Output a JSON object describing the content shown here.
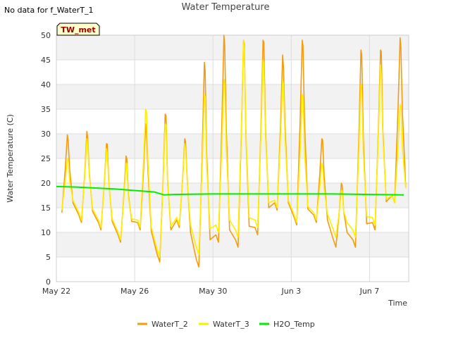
{
  "notice": "No data for f_WaterT_1",
  "chart_data": {
    "type": "line",
    "title": "Water Temperature",
    "xlabel": "Time",
    "ylabel": "Water Temperature (C)",
    "station_badge": "TW_met",
    "ylim": [
      0,
      50
    ],
    "yticks": [
      0,
      5,
      10,
      15,
      20,
      25,
      30,
      35,
      40,
      45,
      50
    ],
    "xlim": [
      "2023-05-22",
      "2023-06-09"
    ],
    "xticks": [
      {
        "date": "2023-05-22",
        "label": "May 22"
      },
      {
        "date": "2023-05-26",
        "label": "May 26"
      },
      {
        "date": "2023-05-30",
        "label": "May 30"
      },
      {
        "date": "2023-06-03",
        "label": "Jun 3"
      },
      {
        "date": "2023-06-07",
        "label": "Jun 7"
      }
    ],
    "grid": true,
    "legend_position": "bottom",
    "series": [
      {
        "name": "WaterT_2",
        "color": "#f39c12",
        "daily_cycle": [
          {
            "date": "2023-05-22",
            "min": 14.0,
            "max": 29.8
          },
          {
            "date": "2023-05-23",
            "min": 12.0,
            "max": 30.5
          },
          {
            "date": "2023-05-24",
            "min": 10.5,
            "max": 28.0
          },
          {
            "date": "2023-05-25",
            "min": 8.0,
            "max": 25.5
          },
          {
            "date": "2023-05-26",
            "min": 10.5,
            "max": 32.0
          },
          {
            "date": "2023-05-27",
            "min": 4.0,
            "max": 34.0
          },
          {
            "date": "2023-05-28",
            "min": 11.0,
            "max": 29.0
          },
          {
            "date": "2023-05-29",
            "min": 3.0,
            "max": 44.5
          },
          {
            "date": "2023-05-30",
            "min": 8.0,
            "max": 50.0
          },
          {
            "date": "2023-05-31",
            "min": 7.0,
            "max": 49.0
          },
          {
            "date": "2023-06-01",
            "min": 9.5,
            "max": 49.0
          },
          {
            "date": "2023-06-02",
            "min": 14.5,
            "max": 46.0
          },
          {
            "date": "2023-06-03",
            "min": 11.5,
            "max": 49.0
          },
          {
            "date": "2023-06-04",
            "min": 12.0,
            "max": 29.0
          },
          {
            "date": "2023-06-05",
            "min": 7.0,
            "max": 20.0
          },
          {
            "date": "2023-06-06",
            "min": 7.0,
            "max": 47.0
          },
          {
            "date": "2023-06-07",
            "min": 10.5,
            "max": 47.0
          },
          {
            "date": "2023-06-08",
            "min": 16.0,
            "max": 49.5
          }
        ]
      },
      {
        "name": "WaterT_3",
        "color": "#ffee00",
        "daily_cycle": [
          {
            "date": "2023-05-22",
            "min": 14.5,
            "max": 25.0
          },
          {
            "date": "2023-05-23",
            "min": 12.5,
            "max": 29.0
          },
          {
            "date": "2023-05-24",
            "min": 11.0,
            "max": 27.0
          },
          {
            "date": "2023-05-25",
            "min": 8.5,
            "max": 24.0
          },
          {
            "date": "2023-05-26",
            "min": 11.0,
            "max": 35.0
          },
          {
            "date": "2023-05-27",
            "min": 5.0,
            "max": 32.0
          },
          {
            "date": "2023-05-28",
            "min": 11.5,
            "max": 28.0
          },
          {
            "date": "2023-05-29",
            "min": 5.5,
            "max": 38.0
          },
          {
            "date": "2023-05-30",
            "min": 10.0,
            "max": 41.0
          },
          {
            "date": "2023-05-31",
            "min": 9.0,
            "max": 49.0
          },
          {
            "date": "2023-06-01",
            "min": 11.0,
            "max": 45.0
          },
          {
            "date": "2023-06-02",
            "min": 15.0,
            "max": 41.0
          },
          {
            "date": "2023-06-03",
            "min": 12.0,
            "max": 38.0
          },
          {
            "date": "2023-06-04",
            "min": 12.5,
            "max": 24.0
          },
          {
            "date": "2023-06-05",
            "min": 9.0,
            "max": 18.5
          },
          {
            "date": "2023-06-06",
            "min": 9.0,
            "max": 40.0
          },
          {
            "date": "2023-06-07",
            "min": 11.5,
            "max": 44.0
          },
          {
            "date": "2023-06-08",
            "min": 16.0,
            "max": 36.0
          }
        ]
      },
      {
        "name": "H2O_Temp",
        "color": "#00ee00",
        "points": [
          {
            "date": "2023-05-22",
            "value": 19.3
          },
          {
            "date": "2023-05-23",
            "value": 19.2
          },
          {
            "date": "2023-05-24",
            "value": 19.0
          },
          {
            "date": "2023-05-25",
            "value": 18.8
          },
          {
            "date": "2023-05-26",
            "value": 18.5
          },
          {
            "date": "2023-05-27",
            "value": 18.2
          },
          {
            "date": "2023-05-27T12:00",
            "value": 17.6
          },
          {
            "date": "2023-05-28",
            "value": 17.7
          },
          {
            "date": "2023-05-30",
            "value": 17.8
          },
          {
            "date": "2023-06-01",
            "value": 17.8
          },
          {
            "date": "2023-06-03",
            "value": 17.8
          },
          {
            "date": "2023-06-05",
            "value": 17.8
          },
          {
            "date": "2023-06-07",
            "value": 17.7
          },
          {
            "date": "2023-06-08T18:00",
            "value": 17.6
          }
        ]
      }
    ]
  }
}
